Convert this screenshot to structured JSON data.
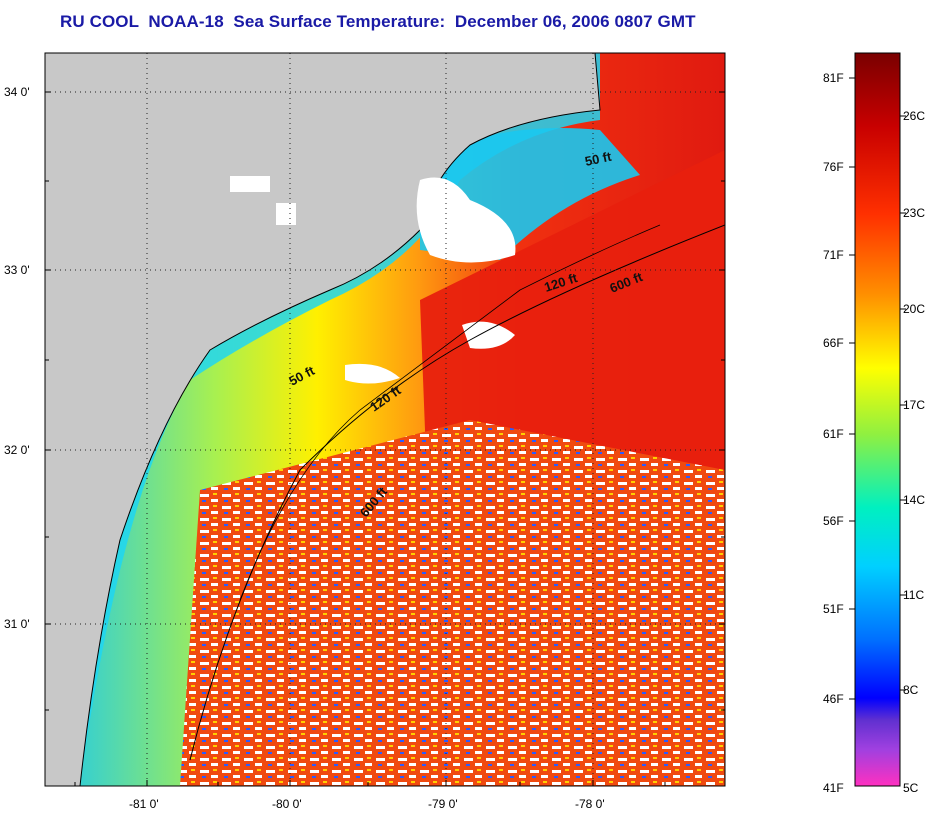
{
  "title": "RU COOL  NOAA-18  Sea Surface Temperature:  December 06, 2006 0807 GMT",
  "map": {
    "lat_labels": [
      "34 0'",
      "33 0'",
      "32 0'",
      "31 0'"
    ],
    "lon_labels": [
      "-81 0'",
      "-80 0'",
      "-79 0'",
      "-78 0'"
    ],
    "contour_labels": [
      "50 ft",
      "120 ft",
      "600 ft",
      "50 ft",
      "120 ft",
      "600 ft"
    ],
    "colors": {
      "land": "#c8c8c8",
      "cloud": "#ffffff",
      "warm": "#ee2a10",
      "cool": "#19e6e6"
    }
  },
  "colorbar": {
    "fahrenheit": [
      "81F",
      "76F",
      "71F",
      "66F",
      "61F",
      "56F",
      "51F",
      "46F",
      "41F"
    ],
    "celsius": [
      "26C",
      "23C",
      "20C",
      "17C",
      "14C",
      "11C",
      "8C",
      "5C"
    ]
  }
}
